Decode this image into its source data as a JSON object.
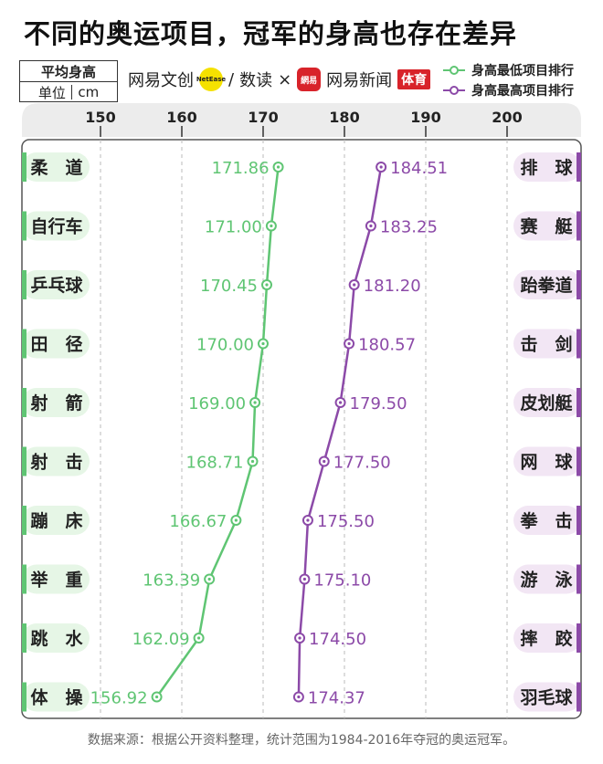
{
  "title": "不同的奥运项目，冠军的身高也存在差异",
  "unit_box": {
    "row1": "平均身高",
    "unit_label": "单位",
    "unit": "cm"
  },
  "logos": {
    "brand1": "网易文创",
    "badge": "NetEase",
    "sep": "/",
    "brand2": "数读",
    "times": "×",
    "red_logo": "網易",
    "brand3": "网易新闻",
    "sports": "体育"
  },
  "legend": {
    "low": "身高最低项目排行",
    "high": "身高最高项目排行"
  },
  "colors": {
    "low": "#5fc573",
    "high": "#8c4aa8",
    "low_bg": "#e6f6e6",
    "high_bg": "#f2e6f4",
    "header_bg": "#ececec"
  },
  "source": "数据来源：根据公开资料整理，统计范围为1984-2016年夺冠的奥运冠军。",
  "chart_data": {
    "type": "line",
    "x_ticks": [
      150,
      160,
      170,
      180,
      190,
      200
    ],
    "xlim": [
      145,
      205
    ],
    "grid": true,
    "series": [
      {
        "name": "身高最低项目排行",
        "categories": [
          "柔　道",
          "自行车",
          "乒乓球",
          "田　径",
          "射　箭",
          "射　击",
          "蹦　床",
          "举　重",
          "跳　水",
          "体　操"
        ],
        "values": [
          171.86,
          171.0,
          170.45,
          170.0,
          169.0,
          168.71,
          166.67,
          163.39,
          162.09,
          156.92
        ],
        "labels": [
          "171.86",
          "171.00",
          "170.45",
          "170.00",
          "169.00",
          "168.71",
          "166.67",
          "163.39",
          "162.09",
          "156.92"
        ]
      },
      {
        "name": "身高最高项目排行",
        "categories": [
          "排　球",
          "赛　艇",
          "跆拳道",
          "击　剑",
          "皮划艇",
          "网　球",
          "拳　击",
          "游　泳",
          "摔　跤",
          "羽毛球"
        ],
        "values": [
          184.51,
          183.25,
          181.2,
          180.57,
          179.5,
          177.5,
          175.5,
          175.1,
          174.5,
          174.37
        ],
        "labels": [
          "184.51",
          "183.25",
          "181.20",
          "180.57",
          "179.50",
          "177.50",
          "175.50",
          "175.10",
          "174.50",
          "174.37"
        ]
      }
    ]
  }
}
